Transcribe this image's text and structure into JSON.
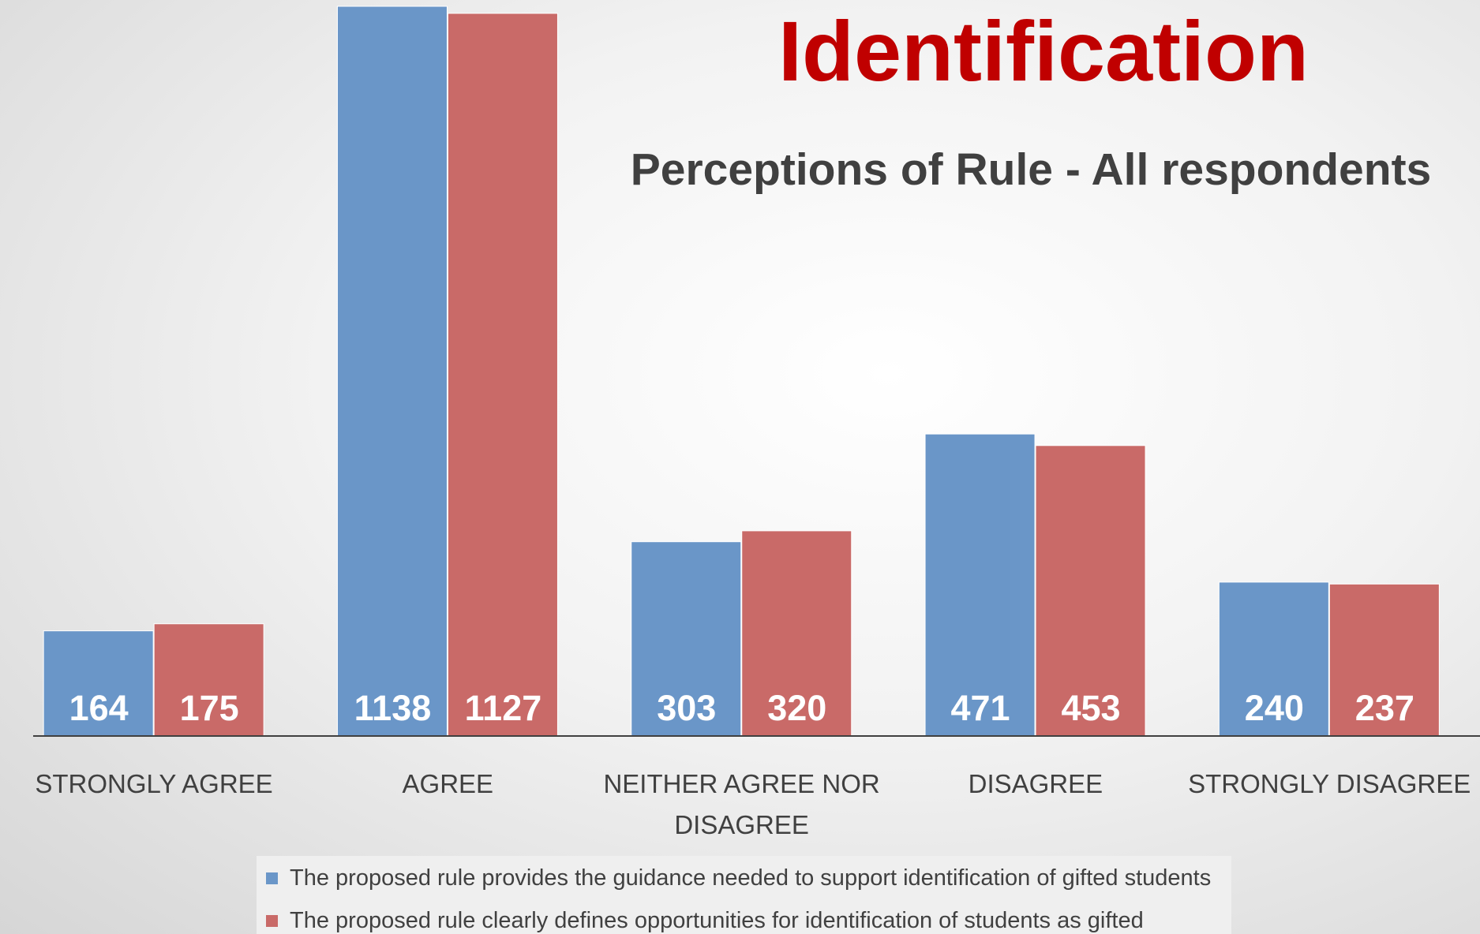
{
  "chart_data": {
    "type": "bar",
    "title": "Identification",
    "subtitle": "Perceptions of Rule - All respondents",
    "categories": [
      "STRONGLY AGREE",
      "AGREE",
      "NEITHER AGREE NOR DISAGREE",
      "DISAGREE",
      "STRONGLY DISAGREE"
    ],
    "series": [
      {
        "name": "The proposed rule provides the guidance needed to support identification of gifted students",
        "color": "#6a96c8",
        "values": [
          164,
          1138,
          303,
          471,
          240
        ]
      },
      {
        "name": "The proposed rule clearly defines opportunities for identification of students as gifted",
        "color": "#c96a68",
        "values": [
          175,
          1127,
          320,
          453,
          237
        ]
      }
    ],
    "legend": "bottom"
  }
}
